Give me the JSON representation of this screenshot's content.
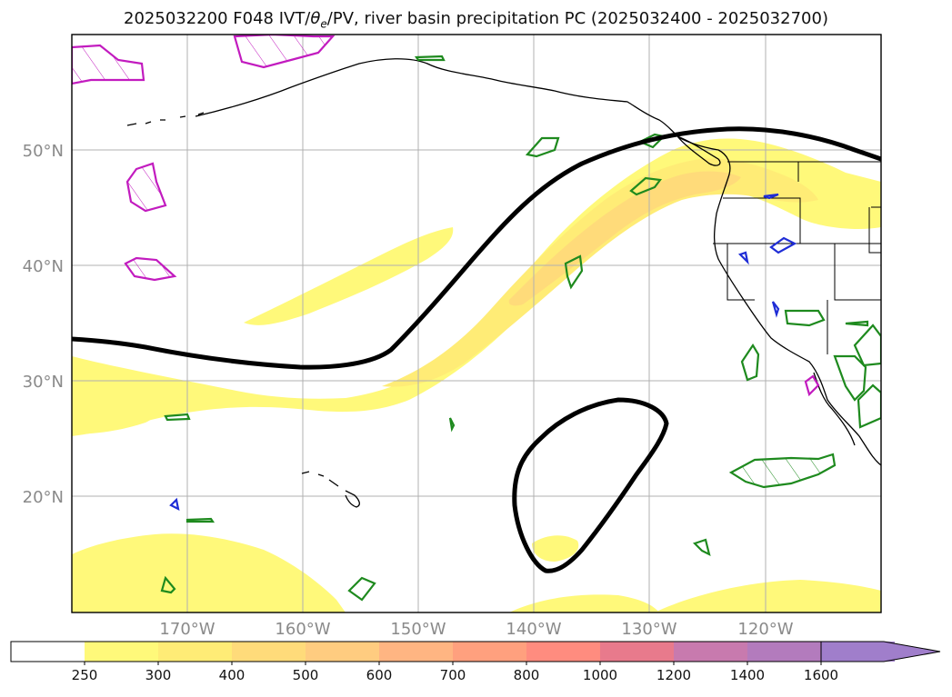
{
  "title": {
    "prefix": "2025032200 F048 IVT/",
    "theta": "θ",
    "theta_sub": "e",
    "suffix": "/PV, river basin precipitation PC (2025032400 - 2025032700)"
  },
  "axes": {
    "longitude_labels": [
      "170°W",
      "160°W",
      "150°W",
      "140°W",
      "130°W",
      "120°W"
    ],
    "latitude_labels": [
      "50°N",
      "40°N",
      "30°N",
      "20°N"
    ]
  },
  "colorbar": {
    "tick_labels": [
      "250",
      "300",
      "400",
      "500",
      "600",
      "700",
      "800",
      "1000",
      "1200",
      "1400",
      "1600"
    ],
    "colors": [
      "#ffffff",
      "#fff97a",
      "#ffec76",
      "#ffdb7a",
      "#ffcc80",
      "#ffb582",
      "#ffa07e",
      "#ff8c7f",
      "#e87a8c",
      "#c87aae",
      "#b37bbd",
      "#a07ecb"
    ],
    "extend": "max"
  },
  "map": {
    "ivt_fill_colors": [
      "#fff97a",
      "#ffec76",
      "#ffdb7a"
    ],
    "contour_black": "#000000",
    "outline_green": "#1e8a1e",
    "outline_magenta": "#c21bbf",
    "outline_blue": "#1f2dd6",
    "grid_color": "#b0b0b0",
    "coastline_color": "#000000"
  }
}
